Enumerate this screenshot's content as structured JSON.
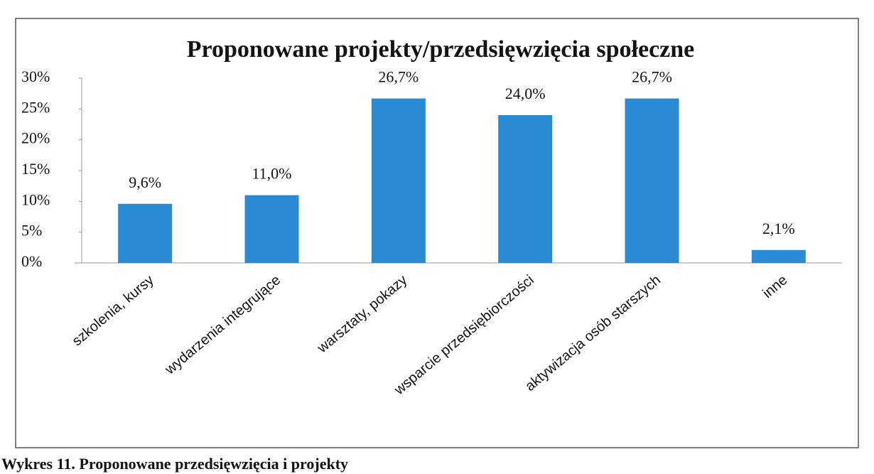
{
  "chart_data": {
    "type": "bar",
    "title": "Proponowane projekty/przedsięwzięcia społeczne",
    "categories": [
      "szkolenia, kursy",
      "wydarzenia integrujące",
      "warsztaty, pokazy",
      "wsparcie przedsiębiorczości",
      "aktywizacja osób starszych",
      "inne"
    ],
    "values": [
      9.6,
      11.0,
      26.7,
      24.0,
      26.7,
      2.1
    ],
    "value_labels": [
      "9,6%",
      "11,0%",
      "26,7%",
      "24,0%",
      "26,7%",
      "2,1%"
    ],
    "color": "#2a8ad4",
    "ylim": [
      0,
      30
    ],
    "yticks": [
      {
        "value": 0,
        "label": "0%"
      },
      {
        "value": 5,
        "label": "5%"
      },
      {
        "value": 10,
        "label": "10%"
      },
      {
        "value": 15,
        "label": "15%"
      },
      {
        "value": 20,
        "label": "20%"
      },
      {
        "value": 25,
        "label": "25%"
      },
      {
        "value": 30,
        "label": "30%"
      }
    ],
    "grid": false,
    "caption": "Wykres 11. Proponowane przedsięwzięcia i projekty"
  }
}
